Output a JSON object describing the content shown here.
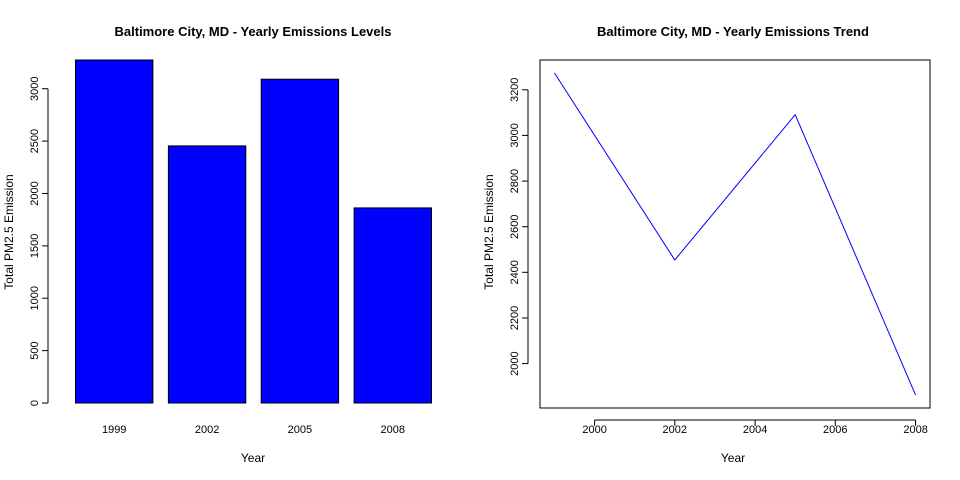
{
  "chart_data": [
    {
      "type": "bar",
      "title": "Baltimore City, MD - Yearly Emissions Levels",
      "xlabel": "Year",
      "ylabel": "Total PM2.5 Emission",
      "categories": [
        "1999",
        "2002",
        "2005",
        "2008"
      ],
      "values": [
        3274,
        2454,
        3091,
        1862
      ],
      "yticks": [
        0,
        500,
        1000,
        1500,
        2000,
        2500,
        3000
      ],
      "ylim": [
        0,
        3274
      ],
      "bar_color": "#0000ff",
      "grid": false
    },
    {
      "type": "line",
      "title": "Baltimore City, MD - Yearly Emissions Trend",
      "xlabel": "Year",
      "ylabel": "Total PM2.5 Emission",
      "x": [
        1999,
        2002,
        2005,
        2008
      ],
      "y": [
        3274,
        2454,
        3091,
        1862
      ],
      "xticks": [
        2000,
        2002,
        2004,
        2006,
        2008
      ],
      "yticks": [
        2000,
        2200,
        2400,
        2600,
        2800,
        3000,
        3200
      ],
      "xlim": [
        1998.64,
        2008.36
      ],
      "ylim": [
        1805.5,
        3330.5
      ],
      "line_color": "#0000ff",
      "grid": false
    }
  ]
}
